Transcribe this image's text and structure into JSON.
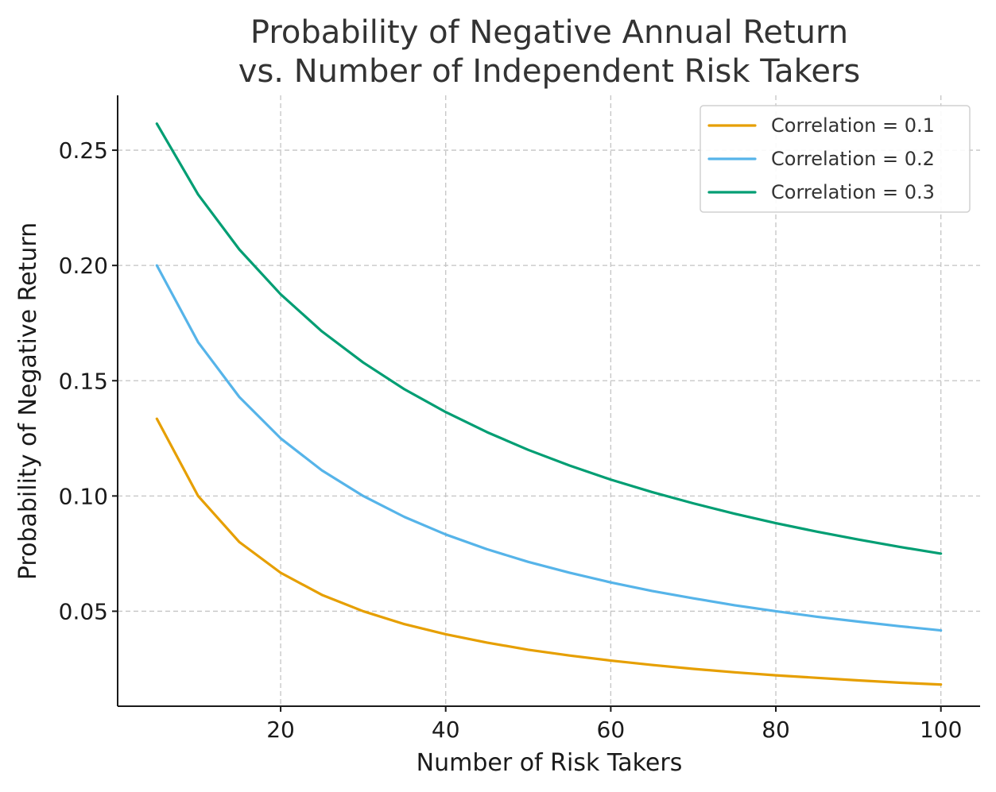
{
  "chart_data": {
    "type": "line",
    "title_lines": [
      "Probability of Negative Annual Return",
      "vs. Number of Independent Risk Takers"
    ],
    "xlabel": "Number of Risk Takers",
    "ylabel": "Probability of Negative Return",
    "xlim": [
      0.25,
      104.75
    ],
    "ylim": [
      0.0088,
      0.2738
    ],
    "x_ticks": [
      20,
      40,
      60,
      80,
      100
    ],
    "x_tick_labels": [
      "20",
      "40",
      "60",
      "80",
      "100"
    ],
    "y_ticks": [
      0.05,
      0.1,
      0.15,
      0.2,
      0.25
    ],
    "y_tick_labels": [
      "0.05",
      "0.10",
      "0.15",
      "0.20",
      "0.25"
    ],
    "grid": true,
    "legend_position": "top-right",
    "x": [
      5,
      10,
      15,
      20,
      25,
      30,
      35,
      40,
      45,
      50,
      55,
      60,
      65,
      70,
      75,
      80,
      85,
      90,
      95,
      100
    ],
    "series": [
      {
        "name": "Correlation = 0.1",
        "color": "#E69F00",
        "values": [
          0.1335,
          0.1,
          0.08,
          0.0667,
          0.0571,
          0.05,
          0.0444,
          0.04,
          0.0364,
          0.0333,
          0.0308,
          0.0286,
          0.0267,
          0.025,
          0.0235,
          0.0222,
          0.0211,
          0.02,
          0.019,
          0.0182
        ]
      },
      {
        "name": "Correlation = 0.2",
        "color": "#56B4E9",
        "values": [
          0.2,
          0.1667,
          0.1429,
          0.125,
          0.1111,
          0.1,
          0.0909,
          0.0833,
          0.0769,
          0.0714,
          0.0667,
          0.0625,
          0.0588,
          0.0556,
          0.0526,
          0.05,
          0.0476,
          0.0455,
          0.0435,
          0.0417
        ]
      },
      {
        "name": "Correlation = 0.3",
        "color": "#009E73",
        "values": [
          0.2615,
          0.2308,
          0.2069,
          0.1875,
          0.1714,
          0.1579,
          0.1463,
          0.1364,
          0.1277,
          0.12,
          0.1132,
          0.1071,
          0.1017,
          0.0968,
          0.0923,
          0.0882,
          0.0845,
          0.0811,
          0.0779,
          0.075
        ]
      }
    ]
  }
}
